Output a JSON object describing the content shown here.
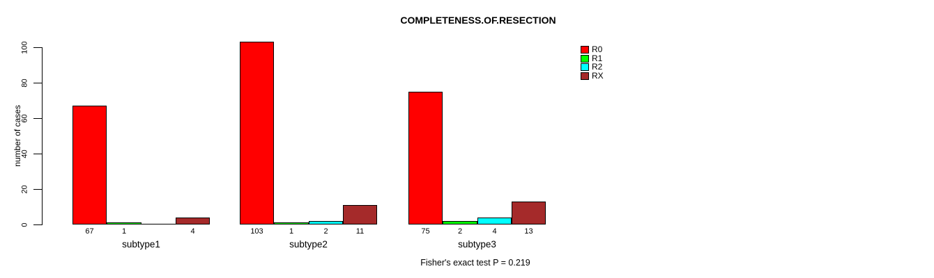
{
  "chart_data": {
    "type": "bar",
    "title": "COMPLETENESS.OF.RESECTION",
    "ylabel": "number of cases",
    "xlabel": "",
    "annotation": "Fisher's exact test P = 0.219",
    "categories": [
      "subtype1",
      "subtype2",
      "subtype3"
    ],
    "series": [
      {
        "name": "R0",
        "color": "#FF0000",
        "values": [
          67,
          103,
          75
        ]
      },
      {
        "name": "R1",
        "color": "#00FF00",
        "values": [
          1,
          1,
          2
        ]
      },
      {
        "name": "R2",
        "color": "#00FFFF",
        "values": [
          0,
          2,
          4
        ]
      },
      {
        "name": "RX",
        "color": "#A52A2A",
        "values": [
          4,
          11,
          13
        ]
      }
    ],
    "bar_value_labels": [
      [
        "67",
        "1",
        "",
        "4"
      ],
      [
        "103",
        "1",
        "2",
        "11"
      ],
      [
        "75",
        "2",
        "4",
        "13"
      ]
    ],
    "yticks": [
      0,
      20,
      40,
      60,
      80,
      100
    ],
    "ylim": [
      0,
      103
    ],
    "grid": false,
    "legend_position": "top-right",
    "bar_border_color": "#000000",
    "axis_color": "#000000",
    "background": "#FFFFFF"
  }
}
